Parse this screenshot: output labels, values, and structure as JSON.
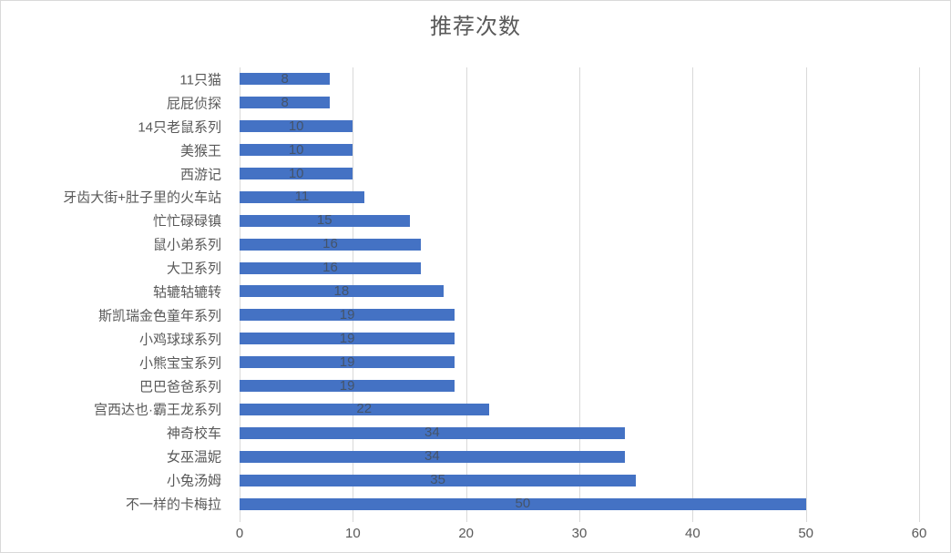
{
  "chart_data": {
    "type": "bar",
    "orientation": "horizontal",
    "title": "推荐次数",
    "categories": [
      "11只猫",
      "屁屁侦探",
      "14只老鼠系列",
      "美猴王",
      "西游记",
      "牙齿大街+肚子里的火车站",
      "忙忙碌碌镇",
      "鼠小弟系列",
      "大卫系列",
      "轱辘轱辘转",
      "斯凯瑞金色童年系列",
      "小鸡球球系列",
      "小熊宝宝系列",
      "巴巴爸爸系列",
      "宫西达也·霸王龙系列",
      "神奇校车",
      "女巫温妮",
      "小兔汤姆",
      "不一样的卡梅拉"
    ],
    "values": [
      8,
      8,
      10,
      10,
      10,
      11,
      15,
      16,
      16,
      18,
      19,
      19,
      19,
      19,
      22,
      34,
      34,
      35,
      50
    ],
    "xlabel": "",
    "ylabel": "",
    "xlim": [
      0,
      60
    ],
    "x_ticks": [
      "0",
      "10",
      "20",
      "30",
      "40",
      "50",
      "60"
    ],
    "grid": true,
    "legend": false,
    "data_label_position": "center"
  },
  "colors": {
    "bar": "#4472C4",
    "data_label": "#44546A",
    "axis_label": "#595959",
    "gridline": "#D9D9D9",
    "title": "#595959",
    "border": "#D9D9D9"
  }
}
